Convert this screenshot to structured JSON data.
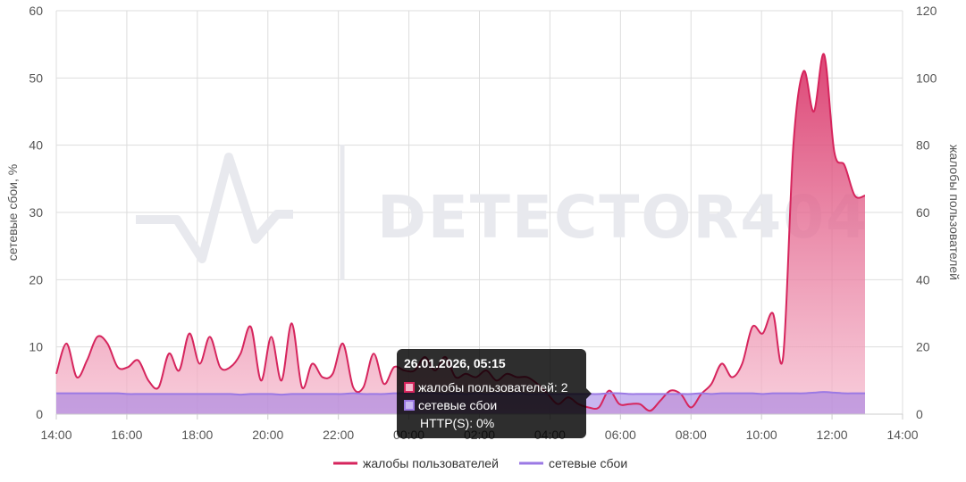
{
  "watermark": "DETECTOR404",
  "chart_data": {
    "type": "area",
    "x_ticks": [
      "14:00",
      "16:00",
      "18:00",
      "20:00",
      "22:00",
      "00:00",
      "02:00",
      "04:00",
      "06:00",
      "08:00",
      "10:00",
      "12:00",
      "14:00"
    ],
    "y_left": {
      "label": "сетевые сбои, %",
      "ticks": [
        0,
        10,
        20,
        30,
        40,
        50,
        60
      ],
      "range": [
        0,
        60
      ]
    },
    "y_right": {
      "label": "жалобы пользователей",
      "ticks": [
        0,
        20,
        40,
        60,
        80,
        100,
        120
      ],
      "range": [
        0,
        120
      ]
    },
    "series": [
      {
        "name": "жалобы пользователей",
        "axis": "right",
        "color": "#d6255d",
        "values": [
          12,
          21,
          11,
          16,
          23,
          21,
          14,
          14,
          16,
          10,
          8,
          18,
          13,
          24,
          15,
          23,
          14,
          14,
          18,
          26,
          10,
          23,
          10,
          27,
          8,
          15,
          11,
          12,
          21,
          8,
          8,
          18,
          9,
          14,
          13,
          13,
          17,
          13,
          17,
          11,
          12,
          11,
          13,
          10,
          12,
          11,
          11,
          9,
          6,
          3,
          5,
          3,
          2,
          2,
          7,
          3,
          3,
          3,
          1,
          4,
          7,
          6,
          2,
          6,
          9,
          15,
          11,
          15,
          26,
          24,
          30,
          17,
          80,
          102,
          90,
          107,
          78,
          74,
          65,
          65
        ]
      },
      {
        "name": "сетевые сбои",
        "axis": "left",
        "color": "#9b79e4",
        "values": [
          3.1,
          3.1,
          3.1,
          3.1,
          3.1,
          3.1,
          3.1,
          3.0,
          3.0,
          3.0,
          3.0,
          3.0,
          3.0,
          3.0,
          3.0,
          3.0,
          3.0,
          3.0,
          2.9,
          3.0,
          3.0,
          3.0,
          2.9,
          3.0,
          3.0,
          3.0,
          3.0,
          3.0,
          3.0,
          3.1,
          3.0,
          3.0,
          3.0,
          3.1,
          3.1,
          3.1,
          3.1,
          3.1,
          3.0,
          3.1,
          3.0,
          3.1,
          3.0,
          3.1,
          3.0,
          3.1,
          3.0,
          3.0,
          3.0,
          3.0,
          3.0,
          3.0,
          3.0,
          3.0,
          3.1,
          3.1,
          3.0,
          3.0,
          3.0,
          3.0,
          3.0,
          3.0,
          3.0,
          3.1,
          3.0,
          3.1,
          3.1,
          3.1,
          3.1,
          3.0,
          3.1,
          3.1,
          3.1,
          3.1,
          3.2,
          3.3,
          3.2,
          3.1,
          3.1,
          3.1
        ]
      }
    ],
    "grid": true,
    "legend": "bottom-center",
    "tooltip": {
      "title": "26.01.2026, 05:15",
      "rows": [
        {
          "label": "жалобы пользователей: 2",
          "color": "#d6255d",
          "fill": "#f3b6ca"
        },
        {
          "label": "сетевые сбои",
          "color": "#9b79e4",
          "fill": "#c9b8f2"
        }
      ],
      "extra": "HTTP(S): 0%"
    }
  }
}
